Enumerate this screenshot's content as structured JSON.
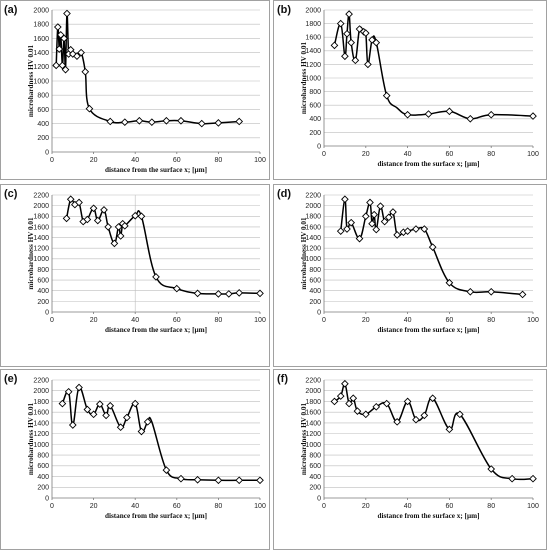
{
  "chart_data": [
    {
      "type": "line",
      "panel_label": "(a)",
      "xlabel": "distance from the surface x; [µm]",
      "ylabel": "microhardness HV 0.01",
      "xlim": [
        0,
        100
      ],
      "ylim": [
        0,
        2000
      ],
      "xticks": [
        0,
        20,
        40,
        60,
        80,
        100
      ],
      "yticks": [
        0,
        200,
        400,
        600,
        800,
        1000,
        1200,
        1400,
        1600,
        1800,
        2000
      ],
      "grid": "horizontal",
      "marker": "diamond",
      "x": [
        2,
        2.8,
        3.5,
        4.2,
        5,
        5.8,
        6.5,
        7.2,
        8,
        9,
        10,
        12,
        14,
        16,
        18,
        28,
        35,
        42,
        48,
        55,
        62,
        72,
        80,
        90
      ],
      "y": [
        1220,
        1760,
        1450,
        1650,
        1220,
        1600,
        1160,
        1950,
        1380,
        1440,
        1380,
        1350,
        1400,
        1130,
        610,
        430,
        420,
        440,
        420,
        440,
        440,
        400,
        410,
        430
      ],
      "marked": [
        true,
        true,
        true,
        true,
        true,
        true,
        true,
        true,
        true,
        true,
        true,
        true,
        true,
        true,
        true,
        true,
        true,
        true,
        true,
        true,
        true,
        true,
        true,
        true
      ]
    },
    {
      "type": "line",
      "panel_label": "(b)",
      "xlabel": "distance from the surface x; [µm]",
      "ylabel": "microhardness HV 0.01",
      "xlim": [
        0,
        100
      ],
      "ylim": [
        0,
        2000
      ],
      "xticks": [
        0,
        20,
        40,
        60,
        80,
        100
      ],
      "yticks": [
        0,
        200,
        400,
        600,
        800,
        1000,
        1200,
        1400,
        1600,
        1800,
        2000
      ],
      "grid": "horizontal",
      "marker": "diamond",
      "x": [
        5,
        8,
        10,
        11,
        12,
        13,
        15,
        17,
        19,
        20,
        21,
        23,
        25,
        30,
        35,
        40,
        50,
        60,
        70,
        80,
        100
      ],
      "y": [
        1480,
        1800,
        1320,
        1650,
        1940,
        1520,
        1260,
        1720,
        1680,
        1660,
        1200,
        1560,
        1520,
        740,
        560,
        460,
        470,
        510,
        400,
        460,
        440
      ],
      "marked": [
        true,
        true,
        true,
        true,
        true,
        true,
        true,
        true,
        true,
        true,
        true,
        true,
        true,
        true,
        false,
        true,
        true,
        true,
        true,
        true,
        true
      ]
    },
    {
      "type": "line",
      "panel_label": "(c)",
      "xlabel": "distance from the surface x; [µm]",
      "ylabel": "microhardness HV 0.01",
      "xlim": [
        0,
        100
      ],
      "ylim": [
        0,
        2200
      ],
      "xticks": [
        0,
        20,
        40,
        60,
        80,
        100
      ],
      "yticks": [
        0,
        200,
        400,
        600,
        800,
        1000,
        1200,
        1400,
        1600,
        1800,
        2000,
        2200
      ],
      "grid": "horizontal",
      "marker": "diamond",
      "x": [
        7,
        9,
        11,
        13,
        15,
        17,
        20,
        22,
        25,
        27,
        30,
        32,
        33,
        34,
        35,
        40,
        43,
        50,
        60,
        70,
        80,
        85,
        90,
        100
      ],
      "y": [
        1760,
        2120,
        2020,
        2060,
        1700,
        1740,
        1950,
        1720,
        1920,
        1600,
        1290,
        1600,
        1430,
        1660,
        1620,
        1810,
        1800,
        660,
        440,
        350,
        340,
        340,
        360,
        350
      ],
      "marked": [
        true,
        true,
        true,
        true,
        true,
        true,
        true,
        true,
        true,
        true,
        true,
        true,
        true,
        true,
        true,
        true,
        true,
        true,
        true,
        true,
        true,
        true,
        true,
        true
      ]
    },
    {
      "type": "line",
      "panel_label": "(d)",
      "xlabel": "distance from the surface x; [µm]",
      "ylabel": "microhardness HV 0.01",
      "xlim": [
        0,
        100
      ],
      "ylim": [
        0,
        2200
      ],
      "xticks": [
        0,
        20,
        40,
        60,
        80,
        100
      ],
      "yticks": [
        0,
        200,
        400,
        600,
        800,
        1000,
        1200,
        1400,
        1600,
        1800,
        2000,
        2200
      ],
      "grid": "horizontal",
      "marker": "diamond",
      "x": [
        8,
        10,
        11,
        13,
        17,
        20,
        22,
        23,
        24,
        25,
        27,
        29,
        31,
        33,
        35,
        38,
        40,
        44,
        48,
        52,
        60,
        70,
        80,
        95
      ],
      "y": [
        1520,
        2120,
        1560,
        1680,
        1380,
        1800,
        2060,
        1660,
        1830,
        1550,
        1990,
        1700,
        1780,
        1880,
        1450,
        1500,
        1520,
        1560,
        1560,
        1220,
        550,
        380,
        380,
        330
      ],
      "marked": [
        true,
        true,
        true,
        true,
        true,
        true,
        true,
        true,
        true,
        true,
        true,
        true,
        true,
        true,
        true,
        true,
        true,
        true,
        true,
        true,
        true,
        true,
        true,
        true
      ]
    },
    {
      "type": "line",
      "panel_label": "(e)",
      "xlabel": "distance from the surface x; [µm]",
      "ylabel": "microhardness HV 0.01",
      "xlim": [
        0,
        100
      ],
      "ylim": [
        0,
        2200
      ],
      "xticks": [
        0,
        20,
        40,
        60,
        80,
        100
      ],
      "yticks": [
        0,
        200,
        400,
        600,
        800,
        1000,
        1200,
        1400,
        1600,
        1800,
        2000,
        2200
      ],
      "grid": "horizontal",
      "marker": "diamond",
      "x": [
        5,
        8,
        10,
        13,
        17,
        20,
        23,
        26,
        28,
        33,
        36,
        40,
        43,
        46,
        48,
        55,
        62,
        70,
        80,
        90,
        100
      ],
      "y": [
        1760,
        1980,
        1360,
        2060,
        1650,
        1560,
        1750,
        1540,
        1720,
        1320,
        1500,
        1760,
        1240,
        1420,
        1420,
        520,
        360,
        340,
        330,
        330,
        330
      ],
      "marked": [
        true,
        true,
        true,
        true,
        true,
        true,
        true,
        true,
        true,
        true,
        true,
        true,
        true,
        true,
        false,
        true,
        true,
        true,
        true,
        true,
        true
      ]
    },
    {
      "type": "line",
      "panel_label": "(f)",
      "xlabel": "distance from the surface x; [µm]",
      "ylabel": "microhardness HV 0.01",
      "xlim": [
        0,
        100
      ],
      "ylim": [
        0,
        2200
      ],
      "xticks": [
        0,
        20,
        40,
        60,
        80,
        100
      ],
      "yticks": [
        0,
        200,
        400,
        600,
        800,
        1000,
        1200,
        1400,
        1600,
        1800,
        2000,
        2200
      ],
      "grid": "horizontal",
      "marker": "diamond",
      "x": [
        5,
        8,
        10,
        12,
        14,
        16,
        20,
        25,
        30,
        35,
        40,
        44,
        48,
        52,
        60,
        65,
        80,
        90,
        100
      ],
      "y": [
        1800,
        1900,
        2130,
        1760,
        1860,
        1620,
        1560,
        1700,
        1760,
        1420,
        1800,
        1460,
        1540,
        1860,
        1280,
        1560,
        540,
        360,
        360
      ],
      "marked": [
        true,
        true,
        true,
        true,
        true,
        true,
        true,
        true,
        true,
        true,
        true,
        true,
        true,
        true,
        true,
        true,
        true,
        true,
        true
      ]
    }
  ]
}
